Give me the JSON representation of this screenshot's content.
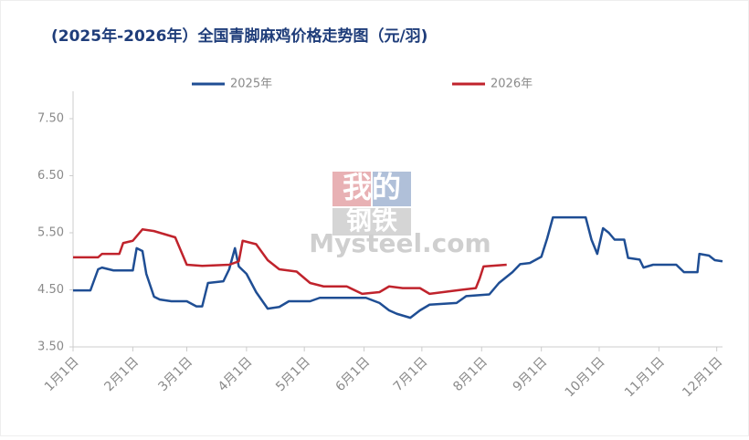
{
  "chart_data": {
    "type": "line",
    "title": "(2025年-2026年）全国青脚麻鸡价格走势图（元/羽)",
    "watermark": [
      "我的",
      "钢铁",
      "Mysteel.com"
    ],
    "xlim": [
      0,
      337
    ],
    "xticks": [
      {
        "value": 0,
        "label": "1月1日"
      },
      {
        "value": 31,
        "label": "2月1日"
      },
      {
        "value": 59,
        "label": "3月1日"
      },
      {
        "value": 90,
        "label": "4月1日"
      },
      {
        "value": 120,
        "label": "5月1日"
      },
      {
        "value": 151,
        "label": "6月1日"
      },
      {
        "value": 181,
        "label": "7月1日"
      },
      {
        "value": 212,
        "label": "8月1日"
      },
      {
        "value": 243,
        "label": "9月1日"
      },
      {
        "value": 273,
        "label": "10月1日"
      },
      {
        "value": 304,
        "label": "11月1日"
      },
      {
        "value": 334,
        "label": "12月1日"
      }
    ],
    "ylim": [
      3.5,
      7.5
    ],
    "yticks": [
      {
        "value": 3.5,
        "label": "3.50"
      },
      {
        "value": 4.5,
        "label": "4.50"
      },
      {
        "value": 5.5,
        "label": "5.50"
      },
      {
        "value": 6.5,
        "label": "6.50"
      },
      {
        "value": 7.5,
        "label": "7.50"
      }
    ],
    "grid": false,
    "legend": "top",
    "series": [
      {
        "name": "2025年",
        "color": "#1f4e94",
        "x": [
          0,
          9,
          13,
          15,
          21,
          31,
          33,
          36,
          38,
          42,
          45,
          51,
          59,
          64,
          67,
          70,
          78,
          81,
          84,
          86,
          90,
          95,
          101,
          107,
          112,
          123,
          128,
          152,
          159,
          164,
          168,
          175,
          180,
          185,
          199,
          204,
          216,
          221,
          228,
          232,
          237,
          243,
          246,
          249,
          266,
          269,
          272,
          275,
          278,
          281,
          286,
          288,
          294,
          296,
          301,
          313,
          317,
          324,
          325,
          330,
          333,
          337
        ],
        "values": [
          4.49,
          4.49,
          4.86,
          4.89,
          4.84,
          4.84,
          5.23,
          5.18,
          4.78,
          4.38,
          4.33,
          4.3,
          4.3,
          4.21,
          4.21,
          4.62,
          4.65,
          4.86,
          5.23,
          4.91,
          4.78,
          4.46,
          4.17,
          4.2,
          4.3,
          4.3,
          4.36,
          4.36,
          4.27,
          4.14,
          4.08,
          4.01,
          4.14,
          4.24,
          4.27,
          4.39,
          4.42,
          4.62,
          4.81,
          4.95,
          4.97,
          5.08,
          5.4,
          5.77,
          5.77,
          5.38,
          5.13,
          5.58,
          5.5,
          5.38,
          5.38,
          5.06,
          5.03,
          4.89,
          4.94,
          4.94,
          4.81,
          4.81,
          5.13,
          5.1,
          5.02,
          5.0
        ]
      },
      {
        "name": "2026年",
        "color": "#c0232c",
        "x": [
          0,
          13,
          15,
          24,
          26,
          31,
          36,
          42,
          47,
          53,
          59,
          67,
          81,
          86,
          88,
          95,
          101,
          107,
          116,
          123,
          130,
          142,
          150,
          159,
          164,
          171,
          180,
          185,
          199,
          209,
          211,
          213,
          225
        ],
        "values": [
          5.07,
          5.07,
          5.13,
          5.13,
          5.32,
          5.36,
          5.56,
          5.53,
          5.48,
          5.42,
          4.94,
          4.92,
          4.94,
          5.0,
          5.36,
          5.3,
          5.02,
          4.86,
          4.82,
          4.62,
          4.56,
          4.56,
          4.43,
          4.46,
          4.56,
          4.53,
          4.53,
          4.43,
          4.49,
          4.53,
          4.7,
          4.91,
          4.94
        ]
      }
    ]
  }
}
